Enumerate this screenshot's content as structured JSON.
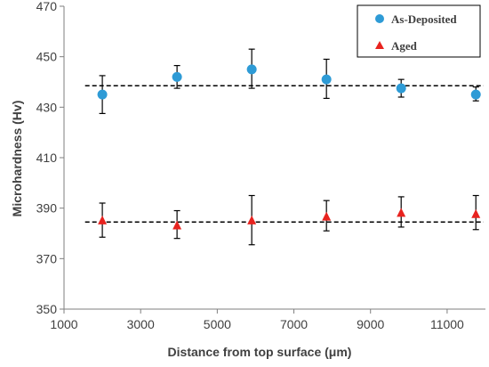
{
  "chart_data": {
    "type": "scatter",
    "title": "",
    "xlabel": "Distance from top surface (μm)",
    "ylabel": "Microhardness (Hv)",
    "xlim": [
      1000,
      12000
    ],
    "ylim": [
      350,
      470
    ],
    "x_ticks": [
      1000,
      3000,
      5000,
      7000,
      9000,
      11000
    ],
    "x_tick_labels": [
      "1000",
      "3000",
      "5000",
      "7000",
      "9000",
      "11000"
    ],
    "y_ticks": [
      350,
      370,
      390,
      410,
      430,
      450,
      470
    ],
    "y_tick_labels": [
      "350",
      "370",
      "390",
      "410",
      "430",
      "450",
      "470"
    ],
    "grid": false,
    "legend_position": "top-right",
    "series": [
      {
        "name": "As-Deposited",
        "marker": "circle",
        "color": "#2E9BD6",
        "x": [
          2000,
          3950,
          5900,
          7850,
          9800,
          11750
        ],
        "y": [
          435,
          442,
          445,
          441,
          437.5,
          435
        ],
        "err_low": [
          427.5,
          437.5,
          437.5,
          433.5,
          434,
          432.5
        ],
        "err_high": [
          442.5,
          446.5,
          453,
          449,
          441,
          438
        ]
      },
      {
        "name": "Aged",
        "marker": "triangle",
        "color": "#E8231F",
        "x": [
          2000,
          3950,
          5900,
          7850,
          9800,
          11750
        ],
        "y": [
          385,
          383,
          385,
          386.5,
          388,
          387.5
        ],
        "err_low": [
          378.5,
          378,
          375.5,
          381,
          382.5,
          381.5
        ],
        "err_high": [
          392,
          389,
          395,
          393,
          394.5,
          395
        ]
      }
    ],
    "reference_lines": [
      {
        "y": 438.5,
        "style": "dashed",
        "color": "#000000",
        "x_range": [
          1550,
          11950
        ]
      },
      {
        "y": 384.5,
        "style": "dashed",
        "color": "#000000",
        "x_range": [
          1550,
          11950
        ]
      }
    ],
    "colors": {
      "axis": "#7F7F7F",
      "text": "#404040",
      "error_bar": "#000000",
      "legend_border": "#000000"
    }
  }
}
